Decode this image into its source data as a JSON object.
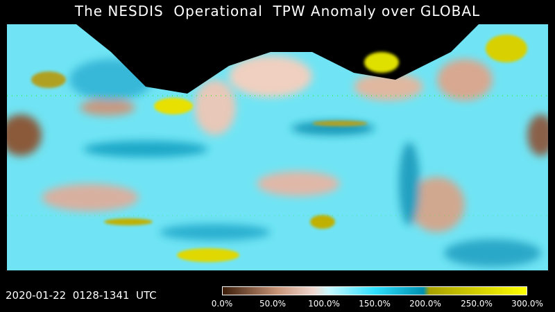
{
  "title": "The NESDIS  Operational  TPW Anomaly over GLOBAL",
  "timestamp": "2020-01-22  0128-1341  UTC",
  "colorbar": {
    "labels": [
      "0.0%",
      "50.0%",
      "100.0%",
      "150.0%",
      "200.0%",
      "250.0%",
      "300.0%"
    ],
    "colors": [
      "#3a1c08",
      "#c89478",
      "#f0d8d0",
      "#c8f8ff",
      "#30e0ff",
      "#0090b0",
      "#a8a000",
      "#ffff00"
    ]
  },
  "map": {
    "no_data_color": "#000000",
    "coastline_color": "#00ff00"
  }
}
